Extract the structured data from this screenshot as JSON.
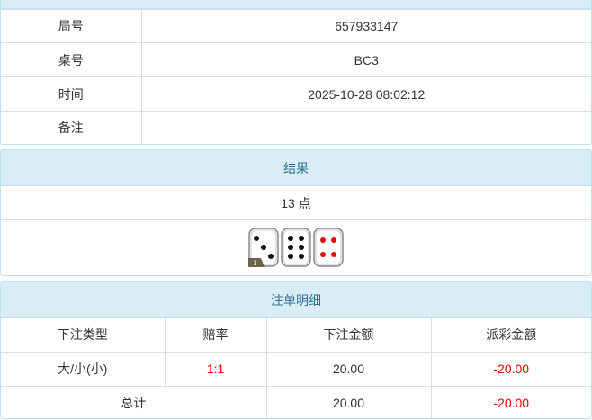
{
  "info": {
    "rows": [
      {
        "label": "局号",
        "value": "657933147"
      },
      {
        "label": "桌号",
        "value": "BC3"
      },
      {
        "label": "时间",
        "value": "2025-10-28 08:02:12"
      },
      {
        "label": "备注",
        "value": ""
      }
    ]
  },
  "result": {
    "title": "结果",
    "points": "13 点",
    "dice": [
      3,
      6,
      4
    ],
    "info_badge": "i"
  },
  "bets": {
    "title": "注单明细",
    "headers": [
      "下注类型",
      "赔率",
      "下注金额",
      "派彩金额"
    ],
    "rows": [
      {
        "type": "大/小(小)",
        "odds": "1:1",
        "amount": "20.00",
        "payout": "-20.00"
      }
    ],
    "total": {
      "label": "总计",
      "amount": "20.00",
      "payout": "-20.00"
    }
  },
  "colors": {
    "header_bg": "#d9edf7",
    "header_text": "#31708f",
    "negative": "#e00000"
  }
}
